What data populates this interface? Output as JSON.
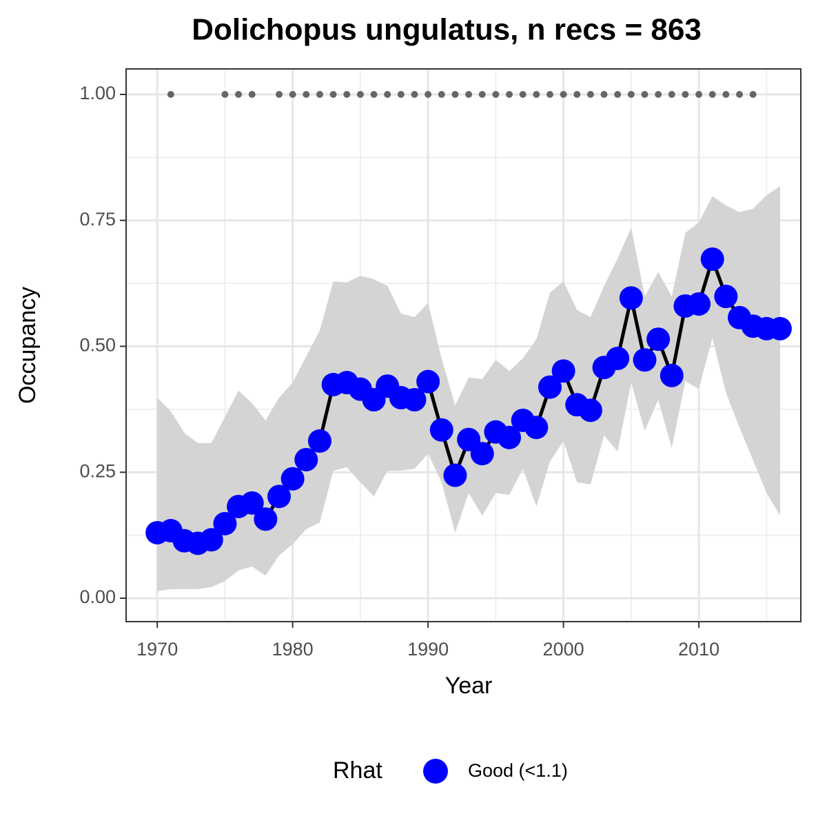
{
  "chart_data": {
    "type": "line",
    "title": "Dolichopus ungulatus, n recs = 863",
    "x_label": "Year",
    "y_label": "Occupancy",
    "legend_title": "Rhat",
    "x": [
      1970,
      1971,
      1972,
      1973,
      1974,
      1975,
      1976,
      1977,
      1978,
      1979,
      1980,
      1981,
      1982,
      1983,
      1984,
      1985,
      1986,
      1987,
      1988,
      1989,
      1990,
      1991,
      1992,
      1993,
      1994,
      1995,
      1996,
      1997,
      1998,
      1999,
      2000,
      2001,
      2002,
      2003,
      2004,
      2005,
      2006,
      2007,
      2008,
      2009,
      2010,
      2011,
      2012,
      2013,
      2014,
      2015,
      2016
    ],
    "series": [
      {
        "name": "Good (<1.1)",
        "color": "#0000ff",
        "line_color": "#000000",
        "values": [
          0.13,
          0.134,
          0.114,
          0.109,
          0.116,
          0.148,
          0.182,
          0.189,
          0.157,
          0.202,
          0.237,
          0.275,
          0.312,
          0.424,
          0.428,
          0.415,
          0.394,
          0.421,
          0.398,
          0.394,
          0.43,
          0.334,
          0.244,
          0.315,
          0.287,
          0.33,
          0.319,
          0.353,
          0.339,
          0.419,
          0.451,
          0.384,
          0.373,
          0.458,
          0.476,
          0.596,
          0.473,
          0.514,
          0.442,
          0.58,
          0.584,
          0.673,
          0.599,
          0.557,
          0.54,
          0.535,
          0.535
        ]
      }
    ],
    "band": {
      "color": "#d4d4d4",
      "lower": [
        0.014,
        0.018,
        0.018,
        0.018,
        0.022,
        0.034,
        0.055,
        0.063,
        0.045,
        0.085,
        0.107,
        0.137,
        0.15,
        0.253,
        0.26,
        0.23,
        0.202,
        0.253,
        0.253,
        0.257,
        0.287,
        0.23,
        0.13,
        0.209,
        0.164,
        0.209,
        0.205,
        0.257,
        0.182,
        0.271,
        0.312,
        0.23,
        0.226,
        0.323,
        0.291,
        0.428,
        0.332,
        0.394,
        0.298,
        0.431,
        0.415,
        0.517,
        0.408,
        0.339,
        0.274,
        0.209,
        0.164
      ],
      "upper": [
        0.398,
        0.371,
        0.328,
        0.308,
        0.308,
        0.36,
        0.412,
        0.387,
        0.353,
        0.398,
        0.428,
        0.48,
        0.531,
        0.629,
        0.627,
        0.64,
        0.633,
        0.62,
        0.565,
        0.558,
        0.586,
        0.476,
        0.383,
        0.438,
        0.435,
        0.473,
        0.451,
        0.476,
        0.514,
        0.606,
        0.629,
        0.572,
        0.558,
        0.62,
        0.674,
        0.736,
        0.599,
        0.647,
        0.599,
        0.725,
        0.746,
        0.798,
        0.78,
        0.766,
        0.773,
        0.8,
        0.818
      ]
    },
    "records": {
      "color": "#666666",
      "x": [
        1971,
        1975,
        1976,
        1977,
        1979,
        1980,
        1981,
        1982,
        1983,
        1984,
        1985,
        1986,
        1987,
        1988,
        1989,
        1990,
        1991,
        1992,
        1993,
        1994,
        1995,
        1996,
        1997,
        1998,
        1999,
        2000,
        2001,
        2002,
        2003,
        2004,
        2005,
        2006,
        2007,
        2008,
        2009,
        2010,
        2011,
        2012,
        2013,
        2014
      ],
      "values": [
        1,
        1,
        1,
        1,
        1,
        1,
        1,
        1,
        1,
        1,
        1,
        1,
        1,
        1,
        1,
        1,
        1,
        1,
        1,
        1,
        1,
        1,
        1,
        1,
        1,
        1,
        1,
        1,
        1,
        1,
        1,
        1,
        1,
        1,
        1,
        1,
        1,
        1,
        1,
        1
      ]
    },
    "xlim": [
      1967.7,
      2017.53
    ],
    "ylim": [
      -0.0465,
      1.0506
    ],
    "xticks": [
      1970,
      1980,
      1990,
      2000,
      2010
    ],
    "yticks": [
      {
        "value": 0,
        "label": "0.00"
      },
      {
        "value": 0.25,
        "label": "0.25"
      },
      {
        "value": 0.5,
        "label": "0.50"
      },
      {
        "value": 0.75,
        "label": "0.75"
      },
      {
        "value": 1,
        "label": "1.00"
      }
    ],
    "x_minor_grid": [
      1975,
      1985,
      1995,
      2005,
      2015
    ],
    "y_minor_grid": [
      0.125,
      0.375,
      0.625,
      0.875
    ],
    "grid": true
  }
}
